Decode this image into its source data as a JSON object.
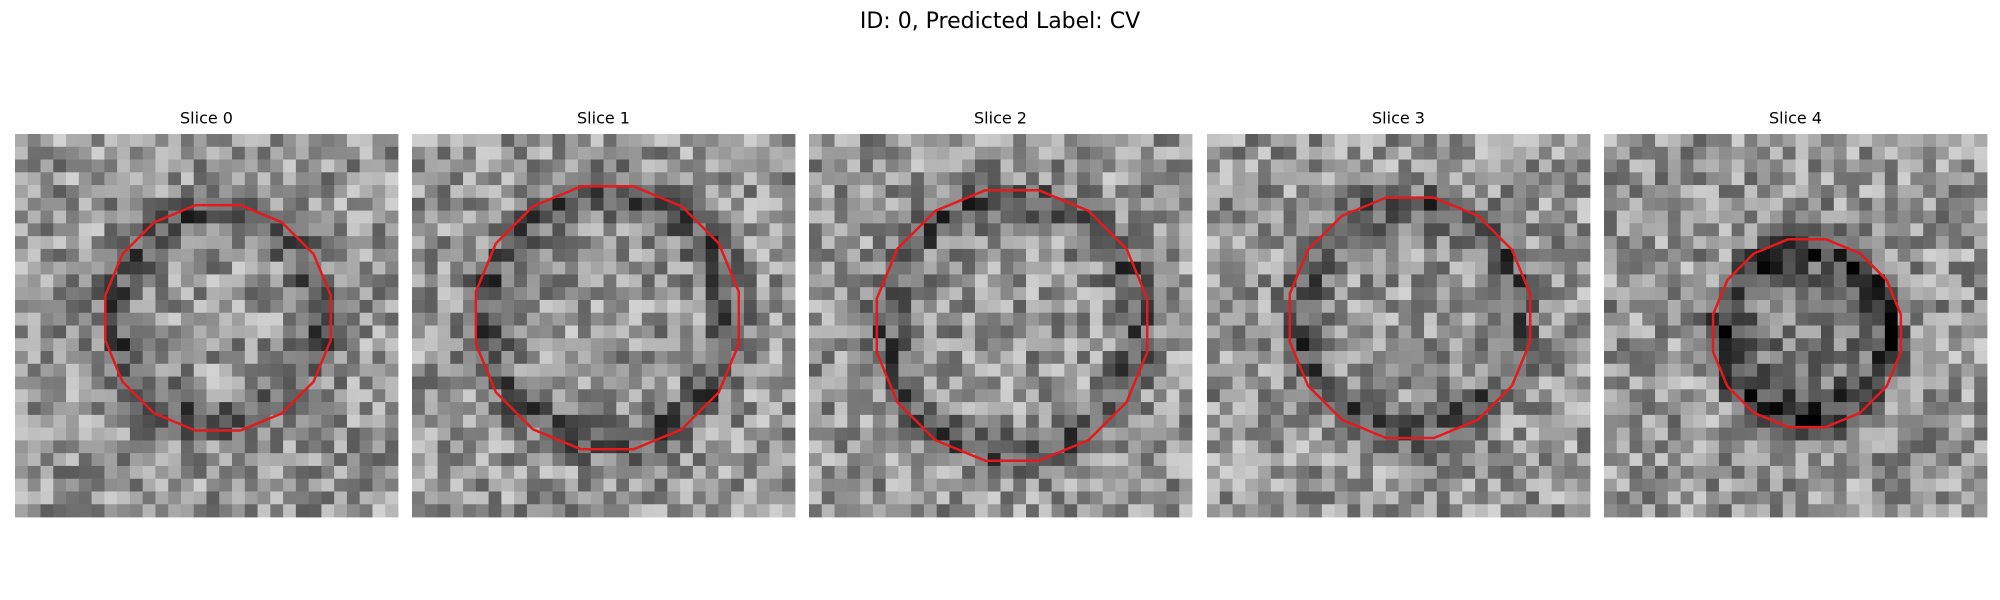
{
  "title": "ID: 0, Predicted Label: CV",
  "panels": [
    {
      "title": "Slice 0"
    },
    {
      "title": "Slice 1"
    },
    {
      "title": "Slice 2"
    },
    {
      "title": "Slice 3"
    },
    {
      "title": "Slice 4"
    }
  ]
}
